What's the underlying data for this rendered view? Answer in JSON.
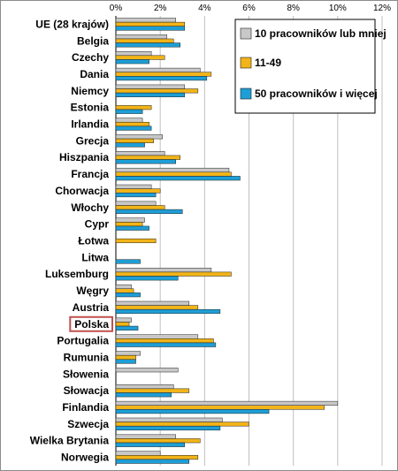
{
  "chart_data": {
    "type": "bar",
    "orientation": "horizontal",
    "categories": [
      "UE (28 krajów)",
      "Belgia",
      "Czechy",
      "Dania",
      "Niemcy",
      "Estonia",
      "Irlandia",
      "Grecja",
      "Hiszpania",
      "Francja",
      "Chorwacja",
      "Włochy",
      "Cypr",
      "Łotwa",
      "Litwa",
      "Luksemburg",
      "Węgry",
      "Austria",
      "Polska",
      "Portugalia",
      "Rumunia",
      "Słowenia",
      "Słowacja",
      "Finlandia",
      "Szwecja",
      "Wielka Brytania",
      "Norwegia"
    ],
    "highlighted_category": "Polska",
    "series": [
      {
        "name": "10 pracowników lub mniej",
        "color": "#C8C8C8",
        "values": [
          2.7,
          2.3,
          1.6,
          3.8,
          3.1,
          null,
          1.2,
          2.1,
          2.2,
          5.1,
          1.6,
          1.8,
          1.3,
          null,
          null,
          4.3,
          0.7,
          3.3,
          0.7,
          3.7,
          1.1,
          2.8,
          2.6,
          10.0,
          4.8,
          2.7,
          2.0
        ]
      },
      {
        "name": "11-49",
        "color": "#F2B418",
        "values": [
          3.1,
          2.6,
          2.2,
          4.3,
          3.7,
          1.6,
          1.5,
          1.7,
          2.9,
          5.2,
          2.0,
          2.2,
          1.2,
          1.8,
          null,
          5.2,
          0.8,
          3.7,
          0.6,
          4.4,
          0.9,
          null,
          3.3,
          9.4,
          6.0,
          3.8,
          3.7
        ]
      },
      {
        "name": "50 pracowników i więcej",
        "color": "#1E9ED6",
        "values": [
          3.1,
          2.9,
          1.5,
          4.1,
          3.1,
          1.2,
          1.6,
          1.3,
          2.7,
          5.6,
          1.8,
          3.0,
          1.5,
          null,
          1.1,
          2.8,
          1.1,
          4.7,
          1.0,
          4.5,
          0.9,
          null,
          2.5,
          6.9,
          4.7,
          3.1,
          3.3
        ]
      }
    ],
    "x_ticks": [
      "0%",
      "2%",
      "4%",
      "6%",
      "8%",
      "10%",
      "12%"
    ],
    "xlim": [
      0,
      12
    ],
    "x_unit": "%",
    "grid": true,
    "legend_position": "top-right"
  }
}
